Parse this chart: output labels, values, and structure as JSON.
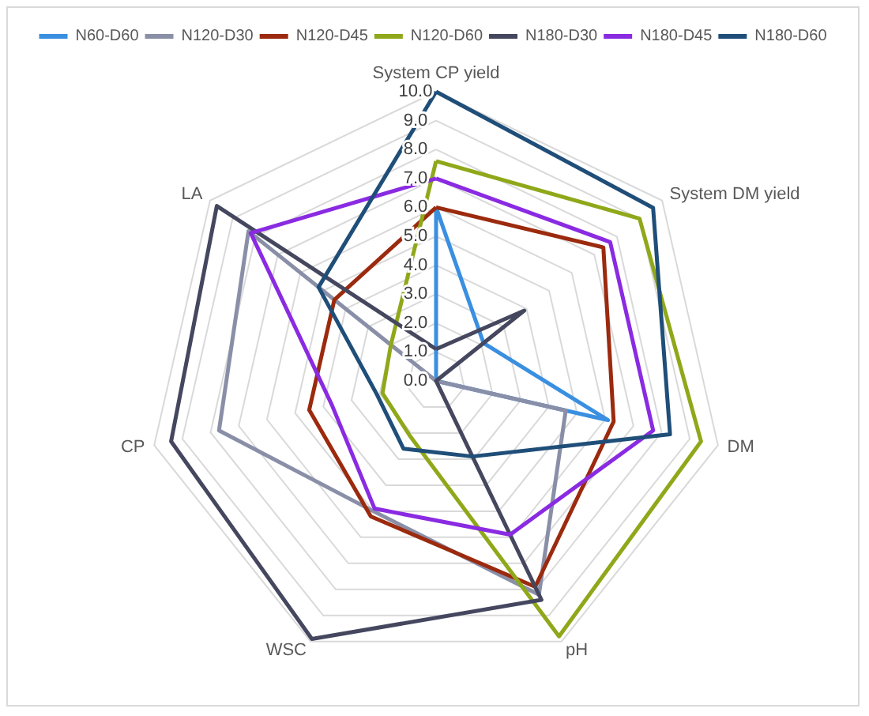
{
  "chart_data": {
    "type": "radar",
    "categories": [
      "System CP yield",
      "System DM yield",
      "DM",
      "pH",
      "WSC",
      "CP",
      "LA"
    ],
    "ylim": [
      0,
      10
    ],
    "yticks": [
      {
        "value": 0,
        "label": "0.0"
      },
      {
        "value": 1,
        "label": "1.0"
      },
      {
        "value": 2,
        "label": "2.0"
      },
      {
        "value": 3,
        "label": "3.0"
      },
      {
        "value": 4,
        "label": "4.0"
      },
      {
        "value": 5,
        "label": "5.0"
      },
      {
        "value": 6,
        "label": "6.0"
      },
      {
        "value": 7,
        "label": "7.0"
      },
      {
        "value": 8,
        "label": "8.0"
      },
      {
        "value": 9,
        "label": "9.0"
      },
      {
        "value": 10,
        "label": "10.0"
      }
    ],
    "grid": true,
    "legend": "top",
    "marker": "none",
    "line_style": "solid",
    "series": [
      {
        "name": "N60-D60",
        "color": "#3a8fe0",
        "values": [
          6.0,
          2.1,
          6.1,
          0,
          0,
          0,
          0
        ]
      },
      {
        "name": "N120-D30",
        "color": "#8a8fa8",
        "values": [
          0,
          0,
          4.6,
          8.2,
          5.0,
          7.7,
          8.3
        ]
      },
      {
        "name": "N120-D45",
        "color": "#9b2a0e",
        "values": [
          6.0,
          7.4,
          6.3,
          7.9,
          5.2,
          4.5,
          4.5
        ]
      },
      {
        "name": "N120-D60",
        "color": "#8fa81a",
        "values": [
          7.6,
          9.0,
          9.4,
          9.8,
          2.1,
          1.9,
          2.0
        ]
      },
      {
        "name": "N180-D30",
        "color": "#44475e",
        "values": [
          1.1,
          3.9,
          0,
          8.4,
          9.9,
          9.4,
          9.7
        ]
      },
      {
        "name": "N180-D45",
        "color": "#8a2be2",
        "values": [
          7.0,
          7.7,
          7.7,
          5.9,
          4.9,
          3.7,
          8.2
        ]
      },
      {
        "name": "N180-D60",
        "color": "#1f4e79",
        "values": [
          10.0,
          9.6,
          8.3,
          2.9,
          2.6,
          2.1,
          5.2
        ]
      }
    ]
  }
}
